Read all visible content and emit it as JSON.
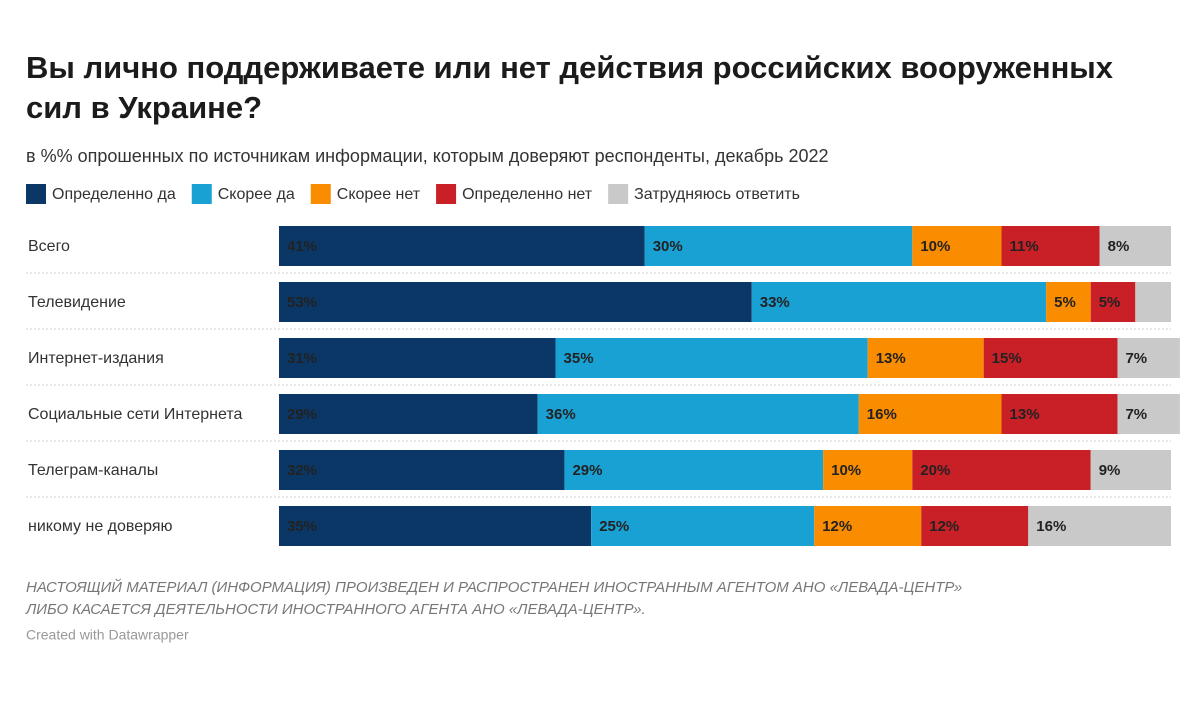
{
  "chart_data": {
    "type": "stacked_bar_horizontal",
    "title": [
      "Вы лично поддерживаете или нет действия российских вооруженных",
      "сил в Украине?"
    ],
    "subtitle": "в %% опрошенных по источникам информации, которым доверяют респонденты, декабрь 2022",
    "categories": [
      "Всего",
      "Телевидение",
      "Интернет-издания",
      "Социальные сети Интернета",
      "Телеграм-каналы",
      "никому не доверяю"
    ],
    "xlim": [
      0,
      100
    ],
    "series": [
      {
        "name": "Определенно да",
        "color": "#0b3766",
        "label_color": "#ffffff",
        "values": [
          41,
          53,
          31,
          29,
          32,
          35
        ],
        "value_labels": [
          "41%",
          "53%",
          "31%",
          "29%",
          "32%",
          "35%"
        ]
      },
      {
        "name": "Скорее да",
        "color": "#1aa1d4",
        "label_color": "#ffffff",
        "values": [
          30,
          33,
          35,
          36,
          29,
          25
        ],
        "value_labels": [
          "30%",
          "33%",
          "35%",
          "36%",
          "29%",
          "25%"
        ]
      },
      {
        "name": "Скорее нет",
        "color": "#fa8c00",
        "label_color": "#ffffff",
        "values": [
          10,
          5,
          13,
          16,
          10,
          12
        ],
        "value_labels": [
          "10%",
          "5%",
          "13%",
          "16%",
          "10%",
          "12%"
        ]
      },
      {
        "name": "Определенно нет",
        "color": "#c91f26",
        "label_color": "#ffffff",
        "values": [
          11,
          5,
          15,
          13,
          20,
          12
        ],
        "value_labels": [
          "11%",
          "5%",
          "15%",
          "13%",
          "20%",
          "12%"
        ]
      },
      {
        "name": "Затрудняюсь ответить",
        "color": "#c9c9c9",
        "label_color": "#444444",
        "values": [
          8,
          4,
          7,
          7,
          9,
          16
        ],
        "value_labels": [
          "8%",
          null,
          "7%",
          "7%",
          "9%",
          "16%"
        ]
      }
    ],
    "notes": [
      "НАСТОЯЩИЙ МАТЕРИАЛ (ИНФОРМАЦИЯ) ПРОИЗВЕДЕН И РАСПРОСТРАНЕН ИНОСТРАННЫМ АГЕНТОМ АНО «ЛЕВАДА-ЦЕНТР»",
      "ЛИБО КАСАЕТСЯ ДЕЯТЕЛЬНОСТИ ИНОСТРАННОГО АГЕНТА АНО «ЛЕВАДА-ЦЕНТР»."
    ],
    "credit": "Created with Datawrapper"
  }
}
